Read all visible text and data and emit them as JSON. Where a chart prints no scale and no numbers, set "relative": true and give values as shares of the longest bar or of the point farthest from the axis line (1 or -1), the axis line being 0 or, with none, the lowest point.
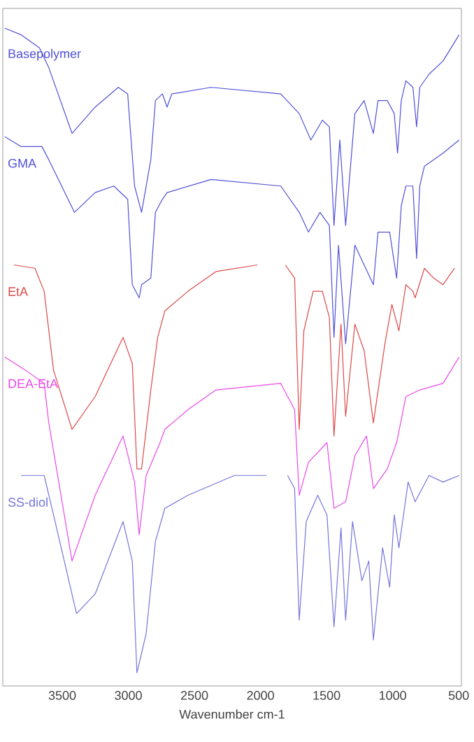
{
  "chart_data": {
    "type": "line",
    "relative": true,
    "xlabel": "Wavenumber cm-1",
    "xlim": [
      3950,
      480
    ],
    "xticks": [
      3500,
      3000,
      2500,
      2000,
      1500,
      1000,
      500
    ],
    "series": [
      {
        "name": "Basepolymer",
        "color": "#5050d8",
        "x": [
          3935,
          3813,
          3672,
          3602,
          3426,
          3251,
          3076,
          3005,
          2953,
          2900,
          2830,
          2795,
          2742,
          2707,
          2672,
          2374,
          1847,
          1707,
          1619,
          1532,
          1479,
          1444,
          1400,
          1356,
          1286,
          1216,
          1146,
          1111,
          1041,
          988,
          963,
          935,
          900,
          847,
          819,
          795,
          725,
          619,
          497
        ],
        "values": [
          1.0,
          0.99,
          0.97,
          0.94,
          0.84,
          0.88,
          0.91,
          0.9,
          0.76,
          0.72,
          0.8,
          0.89,
          0.9,
          0.88,
          0.9,
          0.91,
          0.9,
          0.87,
          0.83,
          0.86,
          0.85,
          0.7,
          0.83,
          0.7,
          0.87,
          0.89,
          0.84,
          0.89,
          0.89,
          0.87,
          0.81,
          0.89,
          0.92,
          0.91,
          0.85,
          0.91,
          0.93,
          0.95,
          0.99
        ]
      },
      {
        "name": "GMA",
        "color": "#5050d8",
        "x": [
          3935,
          3813,
          3654,
          3602,
          3408,
          3251,
          3111,
          3005,
          2970,
          2918,
          2900,
          2830,
          2795,
          2742,
          2707,
          2374,
          1847,
          1707,
          1637,
          1550,
          1479,
          1444,
          1410,
          1356,
          1286,
          1146,
          1111,
          1023,
          970,
          935,
          900,
          847,
          819,
          795,
          760,
          619,
          497
        ],
        "values": [
          0.835,
          0.82,
          0.82,
          0.8,
          0.72,
          0.75,
          0.76,
          0.74,
          0.61,
          0.59,
          0.61,
          0.62,
          0.72,
          0.74,
          0.75,
          0.77,
          0.76,
          0.72,
          0.69,
          0.72,
          0.7,
          0.53,
          0.67,
          0.52,
          0.67,
          0.61,
          0.69,
          0.69,
          0.62,
          0.73,
          0.76,
          0.76,
          0.65,
          0.76,
          0.79,
          0.81,
          0.83
        ]
      },
      {
        "name": "EtA",
        "color": "#dd4848",
        "x": [
          3865,
          3707,
          3637,
          3566,
          3426,
          3251,
          3040,
          2970,
          2935,
          2900,
          2830,
          2778,
          2724,
          2549,
          2337,
          2023,
          1900,
          1812,
          1742,
          1707,
          1672,
          1602,
          1532,
          1479,
          1444,
          1391,
          1356,
          1286,
          1216,
          1146,
          1059,
          1006,
          953,
          900,
          847,
          830,
          760,
          690,
          619,
          532
        ],
        "values": [
          0.64,
          0.635,
          0.6,
          0.48,
          0.39,
          0.44,
          0.53,
          0.49,
          0.33,
          0.33,
          0.45,
          0.53,
          0.57,
          0.6,
          0.63,
          0.64,
          null,
          0.64,
          0.62,
          0.39,
          0.54,
          0.6,
          0.6,
          0.56,
          0.38,
          0.55,
          0.41,
          0.55,
          0.51,
          0.4,
          0.52,
          0.58,
          0.54,
          0.61,
          0.6,
          0.59,
          0.635,
          0.62,
          0.61,
          0.635
        ]
      },
      {
        "name": "DEA-EtA",
        "color": "#e848e8",
        "x": [
          3935,
          3778,
          3637,
          3602,
          3426,
          3251,
          3040,
          2953,
          2918,
          2865,
          2760,
          2724,
          2549,
          2337,
          1847,
          1742,
          1707,
          1637,
          1497,
          1444,
          1356,
          1286,
          1198,
          1146,
          1041,
          970,
          900,
          795,
          619,
          497
        ],
        "values": [
          0.5,
          0.48,
          0.46,
          0.4,
          0.19,
          0.29,
          0.38,
          0.31,
          0.23,
          0.32,
          0.37,
          0.39,
          0.42,
          0.45,
          0.46,
          0.42,
          0.29,
          0.34,
          0.37,
          0.27,
          0.28,
          0.35,
          0.38,
          0.3,
          0.33,
          0.37,
          0.44,
          0.45,
          0.46,
          0.5
        ]
      },
      {
        "name": "SS-diol",
        "color": "#7474dc",
        "x": [
          3813,
          3637,
          3566,
          3392,
          3251,
          3040,
          2970,
          2935,
          2900,
          2865,
          2830,
          2795,
          2724,
          2549,
          2198,
          1953,
          1900,
          1795,
          1742,
          1707,
          1654,
          1567,
          1497,
          1444,
          1391,
          1356,
          1304,
          1233,
          1181,
          1146,
          1076,
          1023,
          988,
          953,
          883,
          830,
          725,
          619,
          497
        ],
        "values": [
          0.32,
          0.32,
          0.26,
          0.11,
          0.14,
          0.25,
          0.19,
          0.02,
          0.05,
          0.08,
          0.15,
          0.22,
          0.27,
          0.29,
          0.32,
          0.32,
          null,
          0.32,
          0.3,
          0.1,
          0.25,
          0.29,
          0.26,
          0.09,
          0.24,
          0.1,
          0.25,
          0.16,
          0.19,
          0.07,
          0.21,
          0.15,
          0.26,
          0.21,
          0.31,
          0.28,
          0.32,
          0.31,
          0.32
        ]
      }
    ]
  }
}
